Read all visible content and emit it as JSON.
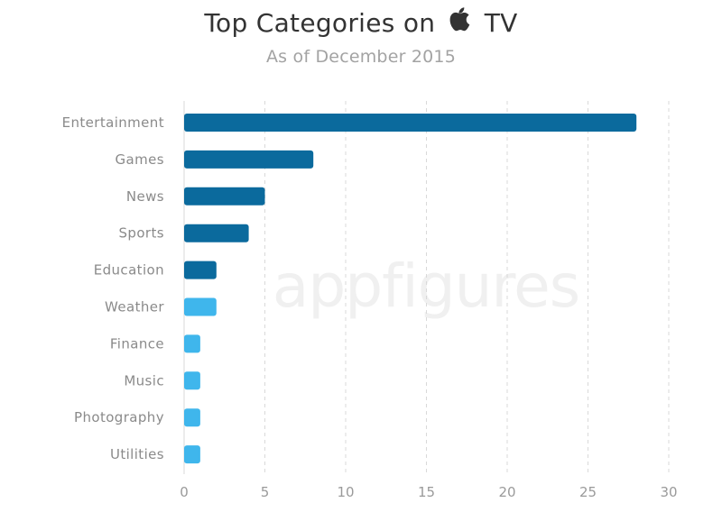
{
  "header": {
    "title_prefix": "Top Categories on",
    "title_logo": "apple-logo",
    "title_suffix": "TV",
    "subtitle": "As of December 2015"
  },
  "watermark": {
    "part1": "app",
    "part2": "figures"
  },
  "colors": {
    "dark_bar": "#0b6a9d",
    "light_bar": "#3fb6ec",
    "grid": "#d9d9d9",
    "label": "#8a8a8a"
  },
  "chart_data": {
    "type": "bar",
    "orientation": "horizontal",
    "title": "Top Categories on TV",
    "subtitle": "As of December 2015",
    "categories": [
      "Entertainment",
      "Games",
      "News",
      "Sports",
      "Education",
      "Weather",
      "Finance",
      "Music",
      "Photography",
      "Utilities"
    ],
    "values": [
      28,
      8,
      5,
      4,
      2,
      2,
      1,
      1,
      1,
      1
    ],
    "bar_colors": [
      "#0b6a9d",
      "#0b6a9d",
      "#0b6a9d",
      "#0b6a9d",
      "#0b6a9d",
      "#3fb6ec",
      "#3fb6ec",
      "#3fb6ec",
      "#3fb6ec",
      "#3fb6ec"
    ],
    "xlim": [
      0,
      30
    ],
    "xticks": [
      0,
      5,
      10,
      15,
      20,
      25,
      30
    ],
    "xlabel": "",
    "ylabel": "",
    "grid": "vertical dashed"
  }
}
